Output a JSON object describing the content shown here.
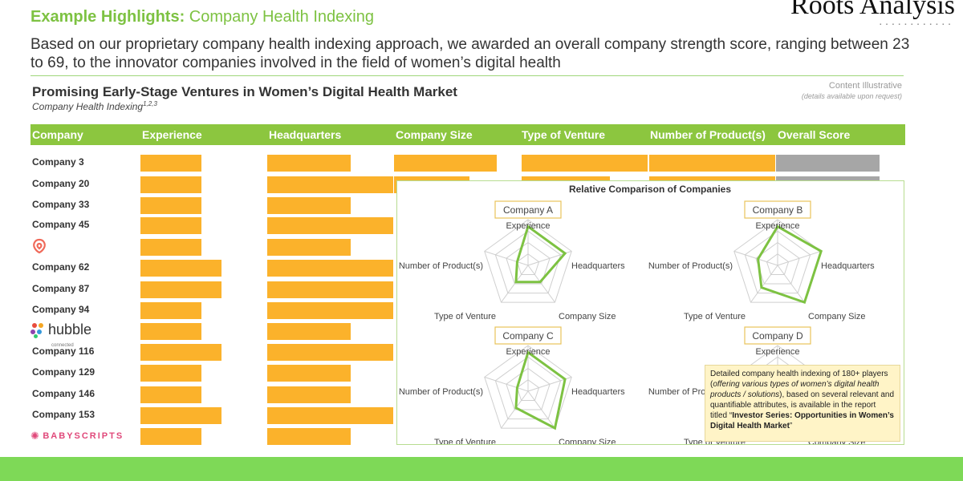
{
  "header": {
    "title_bold": "Example Highlights:",
    "title_rest": " Company Health Indexing",
    "brand": "Roots Analysis",
    "summary": "Based on our proprietary company health indexing approach, we awarded an overall company strength score, ranging between 23 to 69, to the innovator companies involved in the field of women’s digital health"
  },
  "section": {
    "title": "Promising Early-Stage Ventures in Women’s Digital Health Market",
    "subtitle": "Company Health Indexing",
    "subtitle_sup": "1,2,3",
    "illustrative": "Content Illustrative",
    "illustrative_note": "(details available upon request)"
  },
  "table": {
    "columns": [
      "Company",
      "Experience",
      "Headquarters",
      "Company Size",
      "Type of Venture",
      "Number of Product(s)",
      "Overall Score"
    ],
    "rows": [
      "Company 3",
      "Company 20",
      "Company 33",
      "Company 45",
      "",
      "Company 62",
      "Company 87",
      "Company 94",
      "",
      "Company 116",
      "Company 129",
      "Company 146",
      "Company 153",
      ""
    ],
    "logos": {
      "hubble": "hubble",
      "hubble_sub": "connected",
      "babyscripts": "BABYSCRIPTS"
    }
  },
  "radar": {
    "title": "Relative Comparison of Companies",
    "axes": [
      "Experience",
      "Headquarters",
      "Company Size",
      "Type of Venture",
      "Number of Product(s)"
    ],
    "companies": [
      {
        "name": "Company A",
        "values": [
          0.85,
          0.85,
          0.45,
          0.45,
          0.25
        ]
      },
      {
        "name": "Company B",
        "values": [
          0.85,
          1.0,
          1.0,
          0.6,
          0.45
        ]
      },
      {
        "name": "Company C",
        "values": [
          0.85,
          0.85,
          1.0,
          0.45,
          0.25
        ]
      },
      {
        "name": "Company D",
        "values": []
      }
    ]
  },
  "note": {
    "text1": "Detailed company health indexing of 180+ players (",
    "text_italic": "offering various types of women’s digital health products / solutions",
    "text2": "), based on several relevant and quantifiable attributes, is available in the report titled “",
    "text_bold": "Investor Series: Opportunities in Women’s Digital Health Market",
    "text3": "”"
  },
  "chart_data": {
    "type": "table",
    "title": "Promising Early-Stage Ventures in Women’s Digital Health Market",
    "columns": [
      "Experience",
      "Headquarters",
      "Company Size",
      "Type of Venture",
      "Number of Product(s)",
      "Overall Score"
    ],
    "rows": [
      {
        "company": "Company 3",
        "values": [
          0.6,
          0.66,
          0.9,
          1.0,
          1.0,
          1.0
        ]
      },
      {
        "company": "Company 20",
        "values": [
          0.6,
          1.0,
          0.66,
          0.7,
          1.0,
          1.0
        ]
      },
      {
        "company": "Company 33",
        "values": [
          0.6,
          0.66,
          null,
          null,
          null,
          null
        ]
      },
      {
        "company": "",
        "values": [
          0.6,
          1.0,
          null,
          null,
          null,
          null
        ]
      },
      {
        "company": "",
        "values": [
          0.6,
          0.66,
          null,
          null,
          null,
          null
        ]
      },
      {
        "company": "Company 62",
        "values": [
          0.8,
          1.0,
          null,
          null,
          null,
          null
        ]
      },
      {
        "company": "Company 87",
        "values": [
          0.8,
          1.0,
          null,
          null,
          null,
          null
        ]
      },
      {
        "company": "Company 94",
        "values": [
          0.6,
          1.0,
          null,
          null,
          null,
          null
        ]
      },
      {
        "company": "",
        "values": [
          0.6,
          0.66,
          null,
          null,
          null,
          null
        ]
      },
      {
        "company": "Company 116",
        "values": [
          0.8,
          1.0,
          null,
          null,
          null,
          null
        ]
      },
      {
        "company": "Company 129",
        "values": [
          0.6,
          0.66,
          null,
          null,
          null,
          null
        ]
      },
      {
        "company": "Company 146",
        "values": [
          0.6,
          0.66,
          null,
          null,
          null,
          null
        ]
      },
      {
        "company": "Company 153",
        "values": [
          0.8,
          1.0,
          null,
          null,
          null,
          null
        ]
      },
      {
        "company": "",
        "values": [
          0.6,
          0.66,
          null,
          null,
          null,
          null
        ]
      }
    ],
    "colors": {
      "bar": "#fbb22b",
      "score": "#a6a6a6",
      "header": "#8cc63f",
      "radar": "#7dc242"
    }
  }
}
